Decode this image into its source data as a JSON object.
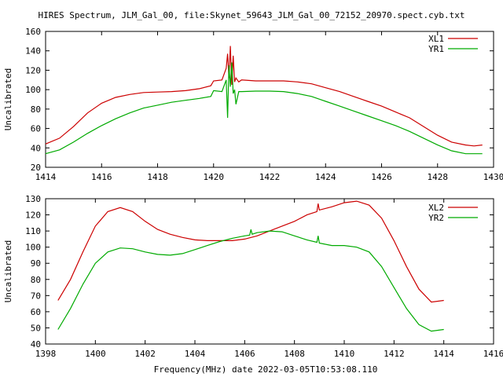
{
  "title": "HIRES Spectrum, JLM_Gal_00, file:Skynet_59643_JLM_Gal_00_72152_20970.spect.cyb.txt",
  "xlabel": "Frequency(MHz) date 2022-03-05T10:53:08.110",
  "colors": {
    "red": "#cc0000",
    "green": "#00aa00",
    "frame": "#000000",
    "background": "#ffffff"
  },
  "chart_data": [
    {
      "type": "line",
      "ylabel": "Uncalibrated",
      "xlim": [
        1414,
        1430
      ],
      "ylim": [
        20,
        160
      ],
      "xticks": [
        1414,
        1416,
        1418,
        1420,
        1422,
        1424,
        1426,
        1428,
        1430
      ],
      "yticks": [
        20,
        40,
        60,
        80,
        100,
        120,
        140,
        160
      ],
      "legend_position": "top-right",
      "series": [
        {
          "name": "XL1",
          "color": "#cc0000",
          "x": [
            1414.0,
            1414.5,
            1415.0,
            1415.5,
            1416.0,
            1416.5,
            1417.0,
            1417.5,
            1418.0,
            1418.5,
            1419.0,
            1419.5,
            1419.9,
            1420.0,
            1420.3,
            1420.45,
            1420.5,
            1420.55,
            1420.6,
            1420.65,
            1420.7,
            1420.75,
            1420.8,
            1420.9,
            1421.0,
            1421.5,
            1422.0,
            1422.5,
            1423.0,
            1423.5,
            1424.0,
            1424.5,
            1425.0,
            1425.5,
            1426.0,
            1426.5,
            1427.0,
            1427.5,
            1428.0,
            1428.5,
            1429.0,
            1429.3,
            1429.6
          ],
          "values": [
            44,
            50,
            62,
            76,
            86,
            92,
            95,
            97,
            97.5,
            98,
            99,
            101,
            104,
            109,
            110,
            122,
            137,
            112,
            145,
            105,
            135,
            108,
            112,
            108,
            110,
            109,
            109,
            109,
            108,
            106,
            102,
            98,
            93,
            88,
            83,
            77,
            71,
            62,
            53,
            46,
            43,
            42,
            43
          ]
        },
        {
          "name": "YR1",
          "color": "#00aa00",
          "x": [
            1414.0,
            1414.5,
            1415.0,
            1415.5,
            1416.0,
            1416.5,
            1417.0,
            1417.5,
            1418.0,
            1418.5,
            1419.0,
            1419.5,
            1419.9,
            1420.0,
            1420.3,
            1420.45,
            1420.5,
            1420.55,
            1420.6,
            1420.65,
            1420.7,
            1420.75,
            1420.8,
            1420.9,
            1421.0,
            1421.5,
            1422.0,
            1422.5,
            1423.0,
            1423.5,
            1424.0,
            1424.5,
            1425.0,
            1425.5,
            1426.0,
            1426.5,
            1427.0,
            1427.5,
            1428.0,
            1428.5,
            1429.0,
            1429.3,
            1429.6
          ],
          "values": [
            34,
            38,
            46,
            55,
            63,
            70,
            76,
            81,
            84,
            87,
            89,
            91,
            93,
            99,
            98,
            110,
            71,
            125,
            103,
            128,
            96,
            100,
            85,
            98,
            98,
            98.5,
            98.5,
            98,
            96,
            93,
            88,
            83,
            78,
            73,
            68,
            63,
            57,
            50,
            43,
            37,
            34,
            34,
            34
          ]
        }
      ]
    },
    {
      "type": "line",
      "ylabel": "Uncalibrated",
      "xlim": [
        1398,
        1416
      ],
      "ylim": [
        40,
        130
      ],
      "xticks": [
        1398,
        1400,
        1402,
        1404,
        1406,
        1408,
        1410,
        1412,
        1414,
        1416
      ],
      "yticks": [
        40,
        50,
        60,
        70,
        80,
        90,
        100,
        110,
        120,
        130
      ],
      "legend_position": "top-right",
      "series": [
        {
          "name": "XL2",
          "color": "#cc0000",
          "x": [
            1398.5,
            1399.0,
            1399.5,
            1400.0,
            1400.5,
            1401.0,
            1401.5,
            1402.0,
            1402.5,
            1403.0,
            1403.5,
            1404.0,
            1404.5,
            1405.0,
            1405.5,
            1406.0,
            1406.5,
            1407.0,
            1407.5,
            1408.0,
            1408.5,
            1408.9,
            1408.95,
            1409.0,
            1409.5,
            1410.0,
            1410.5,
            1411.0,
            1411.5,
            1412.0,
            1412.5,
            1413.0,
            1413.5,
            1414.0
          ],
          "values": [
            67,
            80,
            97,
            113,
            122,
            124.5,
            122,
            116,
            111,
            108,
            106,
            104.5,
            104,
            104,
            104,
            105,
            107,
            110,
            113,
            116,
            120,
            122,
            127,
            123,
            125,
            127.5,
            128.5,
            126,
            118,
            104,
            88,
            74,
            66,
            67
          ]
        },
        {
          "name": "YR2",
          "color": "#00aa00",
          "x": [
            1398.5,
            1399.0,
            1399.5,
            1400.0,
            1400.5,
            1401.0,
            1401.5,
            1402.0,
            1402.5,
            1403.0,
            1403.5,
            1404.0,
            1404.5,
            1405.0,
            1405.5,
            1406.0,
            1406.2,
            1406.25,
            1406.3,
            1406.5,
            1407.0,
            1407.5,
            1408.0,
            1408.5,
            1408.9,
            1408.95,
            1409.0,
            1409.5,
            1410.0,
            1410.5,
            1411.0,
            1411.5,
            1412.0,
            1412.5,
            1413.0,
            1413.5,
            1414.0
          ],
          "values": [
            49,
            62,
            77,
            90,
            97,
            99.5,
            99,
            97,
            95.5,
            95,
            96,
            98.5,
            101,
            103.5,
            105.5,
            107,
            107.5,
            111,
            108,
            109,
            110,
            109.5,
            107,
            104.5,
            103,
            107,
            102.5,
            101,
            101,
            100,
            97,
            88,
            75,
            62,
            52,
            48,
            49
          ]
        }
      ]
    }
  ]
}
